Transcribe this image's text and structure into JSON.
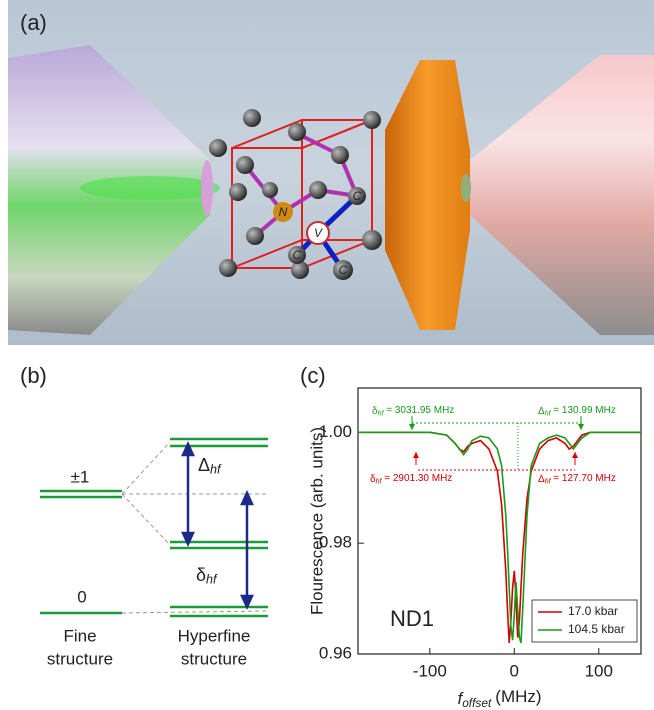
{
  "panel_a": {
    "label": "(a)",
    "atoms": [
      "N",
      "V",
      "C",
      "C",
      "C"
    ]
  },
  "panel_b": {
    "label": "(b)",
    "level_top": "±1",
    "level_bottom": "0",
    "splitting_top": {
      "symbol": "Δ",
      "sub": "hf"
    },
    "splitting_bottom": {
      "symbol": "δ",
      "sub": "hf"
    },
    "column_left": [
      "Fine",
      "structure"
    ],
    "column_right": [
      "Hyperfine",
      "structure"
    ]
  },
  "chart_data": {
    "type": "line",
    "panel_label": "(c)",
    "x_label": {
      "main": "f",
      "sub": "offset",
      "unit": "(MHz)"
    },
    "y_label": "Flourescence (arb. units)",
    "annotation": "ND1",
    "hf_labels": [
      {
        "symbol": "δ",
        "sub": "hf",
        "text": " = 3031.95 MHz",
        "color": "#1a9a1a"
      },
      {
        "symbol": "Δ",
        "sub": "hf",
        "text": " = 130.99 MHz",
        "color": "#1a9a1a"
      },
      {
        "symbol": "δ",
        "sub": "hf",
        "text": " = 2901.30 MHz",
        "color": "#d40000"
      },
      {
        "symbol": "Δ",
        "sub": "hf",
        "text": " = 127.70 MHz",
        "color": "#d40000"
      }
    ],
    "x": [
      -185,
      -160,
      -140,
      -120,
      -100,
      -80,
      -70,
      -65,
      -60,
      -55,
      -50,
      -40,
      -30,
      -20,
      -15,
      -10,
      -8,
      -6,
      -4,
      -2,
      0,
      2,
      4,
      6,
      8,
      10,
      15,
      20,
      30,
      40,
      50,
      60,
      65,
      70,
      75,
      80,
      90,
      100,
      120,
      140,
      150
    ],
    "series": [
      {
        "name": "17.0 kbar",
        "color": "#d40000",
        "values": [
          1.0,
          1.0,
          1.0,
          1.0,
          1.0,
          0.9995,
          0.998,
          0.997,
          0.9965,
          0.9975,
          0.998,
          0.9985,
          0.997,
          0.993,
          0.987,
          0.975,
          0.968,
          0.962,
          0.966,
          0.972,
          0.975,
          0.97,
          0.963,
          0.966,
          0.972,
          0.978,
          0.988,
          0.993,
          0.997,
          0.9985,
          0.999,
          0.998,
          0.997,
          0.9975,
          0.9985,
          0.9995,
          1.0,
          1.0,
          1.0,
          1.0,
          1.0
        ]
      },
      {
        "name": "104.5 kbar",
        "color": "#1a9a1a",
        "values": [
          1.0,
          1.0,
          1.0,
          1.0,
          1.0,
          0.9995,
          0.998,
          0.997,
          0.996,
          0.997,
          0.9985,
          0.9993,
          0.999,
          0.997,
          0.994,
          0.985,
          0.979,
          0.972,
          0.965,
          0.9625,
          0.967,
          0.973,
          0.968,
          0.963,
          0.962,
          0.968,
          0.985,
          0.994,
          0.998,
          0.999,
          0.9995,
          0.999,
          0.998,
          0.997,
          0.998,
          0.999,
          1.0,
          1.0,
          1.0,
          1.0,
          1.0
        ]
      }
    ],
    "xlim": [
      -185,
      150
    ],
    "xticks": [
      -100,
      0,
      100
    ],
    "ylim": [
      0.96,
      1.008
    ],
    "yticks": [
      0.96,
      0.98,
      {
        "value": 1.0,
        "label": "1.00"
      }
    ],
    "legend": "lower right"
  }
}
